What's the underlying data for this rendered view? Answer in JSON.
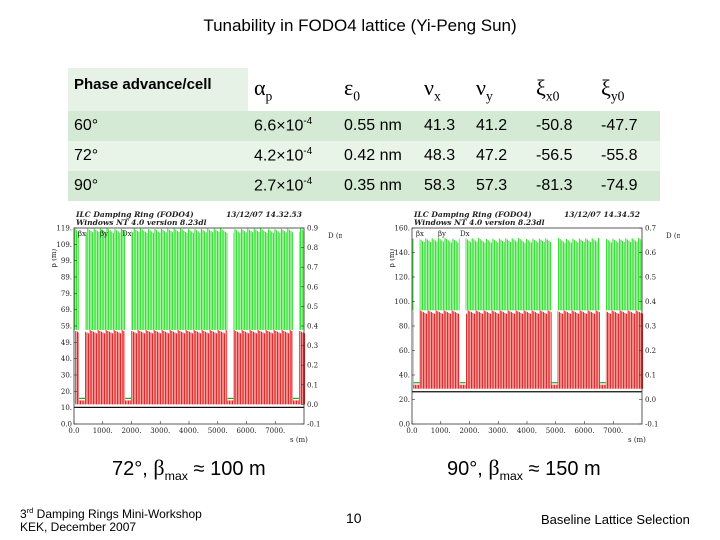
{
  "header": {
    "title": "Tunability in FODO4 lattice (Yi-Peng Sun)"
  },
  "table": {
    "columns": [
      {
        "symbol": "Phase advance/cell",
        "sub": ""
      },
      {
        "symbol": "α",
        "sub": "p"
      },
      {
        "symbol": "ε",
        "sub": "0"
      },
      {
        "symbol": "ν",
        "sub": "x"
      },
      {
        "symbol": "ν",
        "sub": "y"
      },
      {
        "symbol": "ξ",
        "sub": "x0"
      },
      {
        "symbol": "ξ",
        "sub": "y0"
      }
    ],
    "rows": [
      {
        "phase": "60°",
        "alpha": {
          "mantissa": "6.6×10",
          "exponent": "-4"
        },
        "cells": [
          "0.55 nm",
          "41.3",
          "41.2",
          "-50.8",
          "-47.7"
        ]
      },
      {
        "phase": "72°",
        "alpha": {
          "mantissa": "4.2×10",
          "exponent": "-4"
        },
        "cells": [
          "0.42 nm",
          "48.3",
          "47.2",
          "-56.5",
          "-55.8"
        ]
      },
      {
        "phase": "90°",
        "alpha": {
          "mantissa": "2.7×10",
          "exponent": "-4"
        },
        "cells": [
          "0.35 nm",
          "58.3",
          "57.3",
          "-81.3",
          "-74.9"
        ]
      }
    ]
  },
  "plots": [
    {
      "title_lines": [
        "ILC Damping Ring (FODO4)",
        "Windows NT 4.0 version 8.23dl"
      ],
      "date": "13/12/07 14.32.53",
      "legend": [
        "βx",
        "βy",
        "Dx"
      ],
      "left_axis_label": "β (m)",
      "right_axis_label": "D (m)",
      "x_axis_label": "s (m)",
      "yticks_left": [
        "119.",
        "109.",
        "99.",
        "89.",
        "79.",
        "69.",
        "59.",
        "49.",
        "40.",
        "30.",
        "20.",
        "10.",
        "0.0"
      ],
      "yticks_right": [
        "0.9",
        "0.8",
        "0.7",
        "0.6",
        "0.5",
        "0.4",
        "0.3",
        "0.2",
        "0.1",
        "0.0",
        "-0.1"
      ],
      "xticks": [
        "0.0",
        "1000.",
        "2000.",
        "3000.",
        "4000.",
        "5000.",
        "6000.",
        "7000."
      ],
      "caption": {
        "prefix": "72°, ",
        "symbol": "β",
        "sub": "max",
        "suffix": " ≈ 100 m"
      }
    },
    {
      "title_lines": [
        "ILC Damping Ring (FODO4)",
        "Windows NT 4.0 version 8.23dl"
      ],
      "date": "13/12/07 14.34.52",
      "legend": [
        "βx",
        "βy",
        "Dx"
      ],
      "left_axis_label": "β (m)",
      "right_axis_label": "D (m)",
      "x_axis_label": "s (m)",
      "yticks_left": [
        "160.",
        "140.",
        "120.",
        "100.",
        "80.",
        "60.",
        "40.",
        "20.",
        "0.0"
      ],
      "yticks_right": [
        "0.7",
        "0.6",
        "0.5",
        "0.4",
        "0.3",
        "0.2",
        "0.1",
        "0.0",
        "-0.1"
      ],
      "xticks": [
        "0.0",
        "1000.",
        "2000.",
        "3000.",
        "4000.",
        "5000.",
        "6000.",
        "7000."
      ],
      "caption": {
        "prefix": "90°, ",
        "symbol": "β",
        "sub": "max",
        "suffix": " ≈ 150 m"
      }
    }
  ],
  "footer": {
    "workshop": {
      "ordinal": "3",
      "ordinal_suffix": "rd",
      "name": "Damping Rings Mini-Workshop"
    },
    "venue": "KEK, December 2007",
    "page_number": "10",
    "section": "Baseline Lattice Selection"
  }
}
